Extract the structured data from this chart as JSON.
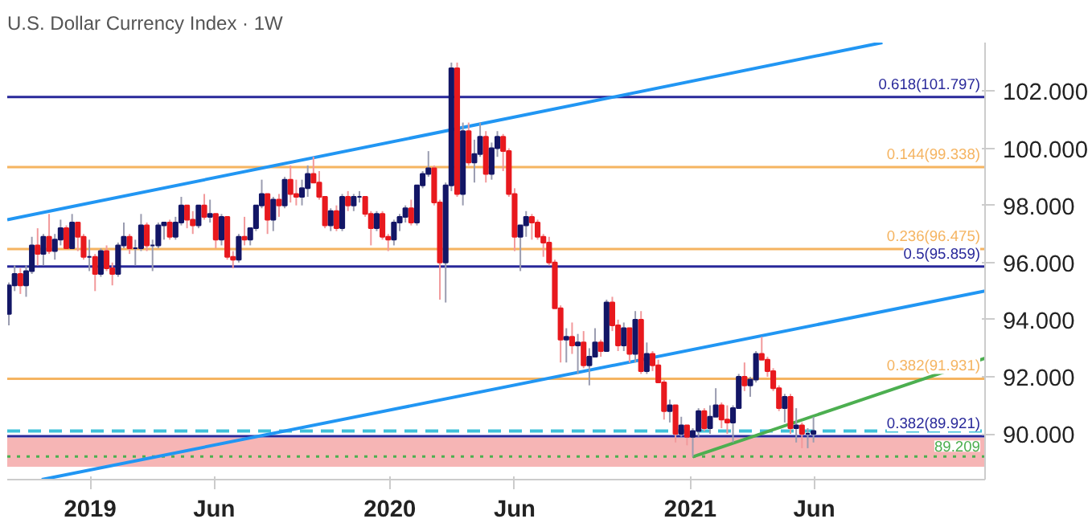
{
  "chart_data": {
    "type": "candlestick",
    "title": "U.S. Dollar Currency Index · 1W",
    "x": [
      "2018-09-24",
      "2018-10-01",
      "2018-10-08",
      "2018-10-15",
      "2018-10-22",
      "2018-10-29",
      "2018-11-05",
      "2018-11-12",
      "2018-11-19",
      "2018-11-26",
      "2018-12-03",
      "2018-12-10",
      "2018-12-17",
      "2018-12-24",
      "2018-12-31",
      "2019-01-07",
      "2019-01-14",
      "2019-01-21",
      "2019-01-28",
      "2019-02-04",
      "2019-02-11",
      "2019-02-18",
      "2019-02-25",
      "2019-03-04",
      "2019-03-11",
      "2019-03-18",
      "2019-03-25",
      "2019-04-01",
      "2019-04-08",
      "2019-04-15",
      "2019-04-22",
      "2019-04-29",
      "2019-05-06",
      "2019-05-13",
      "2019-05-20",
      "2019-05-27",
      "2019-06-03",
      "2019-06-10",
      "2019-06-17",
      "2019-06-24",
      "2019-07-01",
      "2019-07-08",
      "2019-07-15",
      "2019-07-22",
      "2019-07-29",
      "2019-08-05",
      "2019-08-12",
      "2019-08-19",
      "2019-08-26",
      "2019-09-02",
      "2019-09-09",
      "2019-09-16",
      "2019-09-23",
      "2019-09-30",
      "2019-10-07",
      "2019-10-14",
      "2019-10-21",
      "2019-10-28",
      "2019-11-04",
      "2019-11-11",
      "2019-11-18",
      "2019-11-25",
      "2019-12-02",
      "2019-12-09",
      "2019-12-16",
      "2019-12-23",
      "2019-12-30",
      "2020-01-06",
      "2020-01-13",
      "2020-01-20",
      "2020-01-27",
      "2020-02-03",
      "2020-02-10",
      "2020-02-17",
      "2020-02-24",
      "2020-03-02",
      "2020-03-09",
      "2020-03-16",
      "2020-03-23",
      "2020-03-30",
      "2020-04-06",
      "2020-04-13",
      "2020-04-20",
      "2020-04-27",
      "2020-05-04",
      "2020-05-11",
      "2020-05-18",
      "2020-05-25",
      "2020-06-01",
      "2020-06-08",
      "2020-06-15",
      "2020-06-22",
      "2020-06-29",
      "2020-07-06",
      "2020-07-13",
      "2020-07-20",
      "2020-07-27",
      "2020-08-03",
      "2020-08-10",
      "2020-08-17",
      "2020-08-24",
      "2020-08-31",
      "2020-09-07",
      "2020-09-14",
      "2020-09-21",
      "2020-09-28",
      "2020-10-05",
      "2020-10-12",
      "2020-10-19",
      "2020-10-26",
      "2020-11-02",
      "2020-11-09",
      "2020-11-16",
      "2020-11-23",
      "2020-11-30",
      "2020-12-07",
      "2020-12-14",
      "2020-12-21",
      "2020-12-28",
      "2021-01-04",
      "2021-01-11",
      "2021-01-18",
      "2021-01-25",
      "2021-02-01",
      "2021-02-08",
      "2021-02-15",
      "2021-02-22",
      "2021-03-01",
      "2021-03-08",
      "2021-03-15",
      "2021-03-22",
      "2021-03-29",
      "2021-04-05",
      "2021-04-12",
      "2021-04-19",
      "2021-04-26",
      "2021-05-03",
      "2021-05-10",
      "2021-05-17",
      "2021-05-24",
      "2021-05-31"
    ],
    "ohlc": [
      [
        94.2,
        95.3,
        93.8,
        95.2
      ],
      [
        95.2,
        95.9,
        95.0,
        95.6
      ],
      [
        95.6,
        95.8,
        94.9,
        95.2
      ],
      [
        95.2,
        95.9,
        94.8,
        95.7
      ],
      [
        95.7,
        96.9,
        95.6,
        96.6
      ],
      [
        96.6,
        97.2,
        95.9,
        96.3
      ],
      [
        96.3,
        97.0,
        95.9,
        96.9
      ],
      [
        96.9,
        97.7,
        96.3,
        96.4
      ],
      [
        96.4,
        97.0,
        96.1,
        96.8
      ],
      [
        96.8,
        97.5,
        96.6,
        97.2
      ],
      [
        97.2,
        97.3,
        96.5,
        96.5
      ],
      [
        96.5,
        97.7,
        96.5,
        97.4
      ],
      [
        97.4,
        97.4,
        96.4,
        96.9
      ],
      [
        96.9,
        97.0,
        96.1,
        96.2
      ],
      [
        96.2,
        96.8,
        95.7,
        96.2
      ],
      [
        96.2,
        96.3,
        95.0,
        95.6
      ],
      [
        95.6,
        96.5,
        95.5,
        96.4
      ],
      [
        96.4,
        96.6,
        95.7,
        95.8
      ],
      [
        95.8,
        96.0,
        95.2,
        95.6
      ],
      [
        95.6,
        96.7,
        95.5,
        96.6
      ],
      [
        96.6,
        97.4,
        96.5,
        96.9
      ],
      [
        96.9,
        97.0,
        96.3,
        96.5
      ],
      [
        96.5,
        96.8,
        95.9,
        96.5
      ],
      [
        96.5,
        97.7,
        96.4,
        97.3
      ],
      [
        97.3,
        97.4,
        96.4,
        96.6
      ],
      [
        96.6,
        96.8,
        95.7,
        96.6
      ],
      [
        96.6,
        97.4,
        96.5,
        97.3
      ],
      [
        97.3,
        97.4,
        96.8,
        97.4
      ],
      [
        97.4,
        97.5,
        96.8,
        96.9
      ],
      [
        96.9,
        97.6,
        96.8,
        97.4
      ],
      [
        97.4,
        98.3,
        97.3,
        98.0
      ],
      [
        98.0,
        98.0,
        97.2,
        97.5
      ],
      [
        97.5,
        97.8,
        97.0,
        97.3
      ],
      [
        97.3,
        98.0,
        97.2,
        98.0
      ],
      [
        98.0,
        98.4,
        97.5,
        97.6
      ],
      [
        97.6,
        98.2,
        97.4,
        97.7
      ],
      [
        97.7,
        97.7,
        96.5,
        96.8
      ],
      [
        96.8,
        97.7,
        96.6,
        97.6
      ],
      [
        97.6,
        97.6,
        96.1,
        96.2
      ],
      [
        96.2,
        96.4,
        95.8,
        96.1
      ],
      [
        96.1,
        97.0,
        96.0,
        96.9
      ],
      [
        96.9,
        97.6,
        96.6,
        96.8
      ],
      [
        96.8,
        97.2,
        96.6,
        97.2
      ],
      [
        97.2,
        98.0,
        97.1,
        98.0
      ],
      [
        98.0,
        98.9,
        97.9,
        98.4
      ],
      [
        98.4,
        98.4,
        97.0,
        97.5
      ],
      [
        97.5,
        98.3,
        97.1,
        98.2
      ],
      [
        98.2,
        98.4,
        97.6,
        98.0
      ],
      [
        98.0,
        99.0,
        97.9,
        98.9
      ],
      [
        98.9,
        99.4,
        98.1,
        98.4
      ],
      [
        98.4,
        98.9,
        98.0,
        98.3
      ],
      [
        98.3,
        98.9,
        98.0,
        98.6
      ],
      [
        98.6,
        99.4,
        98.3,
        99.1
      ],
      [
        99.1,
        99.7,
        98.8,
        98.8
      ],
      [
        98.8,
        99.2,
        98.2,
        98.3
      ],
      [
        98.3,
        98.3,
        97.2,
        97.3
      ],
      [
        97.3,
        97.9,
        97.1,
        97.8
      ],
      [
        97.8,
        98.0,
        97.1,
        97.2
      ],
      [
        97.2,
        98.4,
        97.1,
        98.3
      ],
      [
        98.3,
        98.5,
        97.8,
        98.0
      ],
      [
        98.0,
        98.4,
        97.8,
        98.3
      ],
      [
        98.3,
        98.5,
        98.1,
        98.3
      ],
      [
        98.3,
        98.3,
        97.6,
        97.7
      ],
      [
        97.7,
        97.8,
        96.6,
        97.2
      ],
      [
        97.2,
        97.8,
        97.1,
        97.7
      ],
      [
        97.7,
        97.8,
        96.8,
        96.9
      ],
      [
        96.9,
        97.0,
        96.4,
        96.8
      ],
      [
        96.8,
        97.5,
        96.6,
        97.4
      ],
      [
        97.4,
        97.7,
        97.1,
        97.6
      ],
      [
        97.6,
        98.0,
        97.4,
        97.9
      ],
      [
        97.9,
        98.2,
        97.3,
        97.4
      ],
      [
        97.4,
        98.7,
        97.3,
        98.7
      ],
      [
        98.7,
        99.2,
        98.6,
        99.1
      ],
      [
        99.1,
        99.9,
        99.0,
        99.3
      ],
      [
        99.3,
        99.4,
        98.0,
        98.1
      ],
      [
        98.1,
        98.2,
        94.7,
        96.0
      ],
      [
        96.0,
        98.8,
        94.6,
        98.7
      ],
      [
        98.7,
        103.0,
        98.5,
        102.8
      ],
      [
        102.8,
        103.0,
        98.3,
        98.4
      ],
      [
        98.4,
        100.9,
        98.0,
        100.6
      ],
      [
        100.6,
        100.9,
        99.4,
        99.5
      ],
      [
        99.5,
        100.3,
        98.8,
        99.8
      ],
      [
        99.8,
        100.9,
        99.7,
        100.4
      ],
      [
        100.4,
        100.6,
        98.8,
        99.1
      ],
      [
        99.1,
        100.2,
        98.9,
        100.0
      ],
      [
        100.0,
        100.6,
        99.7,
        100.4
      ],
      [
        100.4,
        100.5,
        99.2,
        99.9
      ],
      [
        99.9,
        100.0,
        98.3,
        98.4
      ],
      [
        98.4,
        98.6,
        96.4,
        96.9
      ],
      [
        96.9,
        97.3,
        95.7,
        97.3
      ],
      [
        97.3,
        97.8,
        96.9,
        97.6
      ],
      [
        97.6,
        97.7,
        96.8,
        97.4
      ],
      [
        97.4,
        97.5,
        96.8,
        96.9
      ],
      [
        96.9,
        97.0,
        96.2,
        96.7
      ],
      [
        96.7,
        96.9,
        95.9,
        96.0
      ],
      [
        96.0,
        96.1,
        94.4,
        94.4
      ],
      [
        94.4,
        94.5,
        92.5,
        93.3
      ],
      [
        93.3,
        93.7,
        92.5,
        93.4
      ],
      [
        93.4,
        93.9,
        92.8,
        93.1
      ],
      [
        93.1,
        93.5,
        92.1,
        93.2
      ],
      [
        93.2,
        93.6,
        92.3,
        92.4
      ],
      [
        92.4,
        93.0,
        91.7,
        92.7
      ],
      [
        92.7,
        93.7,
        92.7,
        93.2
      ],
      [
        93.2,
        93.3,
        92.7,
        92.9
      ],
      [
        92.9,
        94.7,
        92.9,
        94.6
      ],
      [
        94.6,
        94.8,
        93.6,
        93.8
      ],
      [
        93.8,
        94.0,
        92.9,
        93.1
      ],
      [
        93.1,
        93.9,
        92.9,
        93.7
      ],
      [
        93.7,
        93.7,
        92.5,
        92.8
      ],
      [
        92.8,
        94.3,
        92.5,
        94.0
      ],
      [
        94.0,
        94.3,
        92.1,
        92.2
      ],
      [
        92.2,
        93.2,
        92.1,
        92.8
      ],
      [
        92.8,
        92.9,
        92.2,
        92.4
      ],
      [
        92.4,
        92.6,
        91.8,
        91.8
      ],
      [
        91.8,
        91.9,
        90.5,
        90.8
      ],
      [
        90.8,
        91.2,
        90.4,
        91.0
      ],
      [
        91.0,
        91.0,
        89.7,
        90.0
      ],
      [
        90.0,
        90.6,
        89.9,
        90.3
      ],
      [
        90.3,
        90.3,
        89.6,
        89.9
      ],
      [
        89.9,
        90.2,
        89.2,
        90.1
      ],
      [
        90.1,
        90.9,
        89.9,
        90.8
      ],
      [
        90.8,
        90.9,
        90.1,
        90.2
      ],
      [
        90.2,
        91.0,
        90.0,
        90.6
      ],
      [
        90.6,
        91.6,
        90.6,
        91.0
      ],
      [
        91.0,
        91.1,
        90.2,
        90.5
      ],
      [
        90.5,
        91.0,
        90.0,
        90.4
      ],
      [
        90.4,
        91.0,
        89.7,
        90.9
      ],
      [
        90.9,
        92.1,
        90.9,
        92.0
      ],
      [
        92.0,
        92.5,
        91.5,
        91.7
      ],
      [
        91.7,
        92.0,
        91.3,
        91.9
      ],
      [
        91.9,
        92.9,
        91.8,
        92.8
      ],
      [
        92.8,
        93.4,
        92.6,
        92.6
      ],
      [
        92.6,
        92.7,
        92.0,
        92.2
      ],
      [
        92.2,
        92.3,
        91.5,
        91.6
      ],
      [
        91.6,
        91.7,
        90.8,
        90.9
      ],
      [
        90.9,
        91.4,
        90.4,
        91.3
      ],
      [
        91.3,
        91.4,
        90.0,
        90.2
      ],
      [
        90.2,
        90.9,
        89.7,
        90.3
      ],
      [
        90.3,
        90.4,
        89.5,
        90.0
      ],
      [
        90.0,
        90.2,
        89.5,
        90.0
      ],
      [
        90.0,
        90.6,
        89.7,
        90.1
      ]
    ],
    "series": [
      {
        "type": "line",
        "color": "#2196f3",
        "x": [
          "2018-09-22",
          "2021-08-23"
        ],
        "values": [
          97.5,
          103.7
        ]
      },
      {
        "type": "line",
        "color": "#2196f3",
        "x": [
          "2018-11-03",
          "2021-12-26"
        ],
        "values": [
          88.4,
          95.0
        ]
      },
      {
        "type": "line",
        "color": "#4caf50",
        "x": [
          "2021-01-04",
          "2021-12-26"
        ],
        "values": [
          89.2,
          92.65
        ]
      }
    ],
    "ref_lines": [
      {
        "axis": "y",
        "value": 101.797,
        "label": "0.618(101.797)",
        "color": "#28289a"
      },
      {
        "axis": "y",
        "value": 99.338,
        "label": "0.144(99.338)",
        "color": "#f5b461"
      },
      {
        "axis": "y",
        "value": 96.475,
        "label": "0.236(96.475)",
        "color": "#f5b461"
      },
      {
        "axis": "y",
        "value": 95.859,
        "label": "0.5(95.859)",
        "color": "#28289a"
      },
      {
        "axis": "y",
        "value": 91.931,
        "label": "0.382(91.931)",
        "color": "#f5b461"
      },
      {
        "axis": "y",
        "value": 89.921,
        "label": "0.382(89.921)",
        "color": "#28289a"
      },
      {
        "axis": "y",
        "value": 90.1,
        "color": "#3fc1d9",
        "line_style": "dashed"
      },
      {
        "axis": "y",
        "value": 89.209,
        "label": "89.209",
        "color": "#4caf50",
        "line_style": "dotted"
      }
    ],
    "bands": [
      {
        "axis": "y",
        "from": 88.85,
        "to": 89.87,
        "color": "#f4a3a3"
      }
    ],
    "xlim": [
      "2018-09-22",
      "2021-12-26"
    ],
    "xticks": [
      {
        "value": "2019-01-01",
        "label": "2019"
      },
      {
        "value": "2019-06-01",
        "label": "Jun"
      },
      {
        "value": "2020-01-01",
        "label": "2020"
      },
      {
        "value": "2020-06-01",
        "label": "Jun"
      },
      {
        "value": "2021-01-01",
        "label": "2021"
      },
      {
        "value": "2021-06-01",
        "label": "Jun"
      }
    ],
    "ylim": [
      88.4,
      103.7
    ],
    "yticks": [
      {
        "value": 90,
        "label": "90.000"
      },
      {
        "value": 92,
        "label": "92.000"
      },
      {
        "value": 94,
        "label": "94.000"
      },
      {
        "value": 96,
        "label": "96.000"
      },
      {
        "value": 98,
        "label": "98.000"
      },
      {
        "value": 100,
        "label": "100.000"
      },
      {
        "value": 102,
        "label": "102.000"
      }
    ]
  }
}
